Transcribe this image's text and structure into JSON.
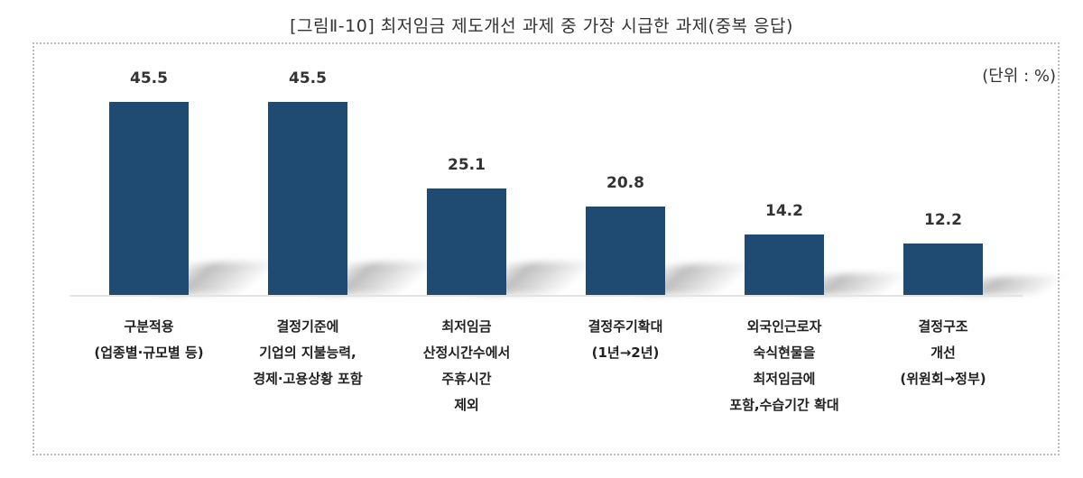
{
  "title": "[그림Ⅱ-10] 최저임금 제도개선 과제 중 가장 시급한 과제(중복 응답)",
  "unit": "(단위 : %)",
  "colors": {
    "bar": "#1f4a72",
    "axis": "#e3e3e3",
    "frame": "#bdbdbd"
  },
  "bars": [
    {
      "value": "45.5",
      "label_lines": [
        "구분적용",
        "(업종별·규모별 등)"
      ]
    },
    {
      "value": "45.5",
      "label_lines": [
        "결정기준에",
        "기업의 지불능력,",
        "경제·고용상황 포함"
      ]
    },
    {
      "value": "25.1",
      "label_lines": [
        "최저임금",
        "산정시간수에서",
        "주휴시간",
        "제외"
      ]
    },
    {
      "value": "20.8",
      "label_lines": [
        "결정주기확대",
        "(1년→2년)"
      ]
    },
    {
      "value": "14.2",
      "label_lines": [
        "외국인근로자",
        "숙식현물을",
        "최저임금에",
        "포함,수습기간 확대"
      ]
    },
    {
      "value": "12.2",
      "label_lines": [
        "결정구조",
        "개선",
        "(위원회→정부)"
      ]
    }
  ],
  "chart_data": {
    "type": "bar",
    "title": "[그림Ⅱ-10] 최저임금 제도개선 과제 중 가장 시급한 과제(중복 응답)",
    "unit": "%",
    "categories": [
      "구분적용 (업종별·규모별 등)",
      "결정기준에 기업의 지불능력, 경제·고용상황 포함",
      "최저임금 산정시간수에서 주휴시간 제외",
      "결정주기확대 (1년→2년)",
      "외국인근로자 숙식현물을 최저임금에 포함,수습기간 확대",
      "결정구조 개선 (위원회→정부)"
    ],
    "values": [
      45.5,
      45.5,
      25.1,
      20.8,
      14.2,
      12.2
    ],
    "xlabel": "",
    "ylabel": "",
    "ylim": [
      0,
      50
    ],
    "grid": false,
    "legend": "none",
    "data_labels": true
  }
}
